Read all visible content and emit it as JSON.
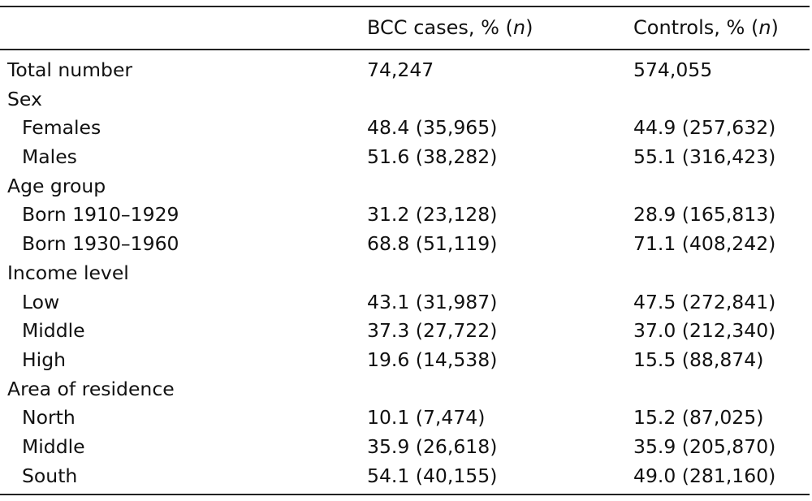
{
  "table": {
    "header": {
      "col1": "",
      "col2_prefix": "BCC cases, % (",
      "col2_n": "n",
      "col2_suffix": ")",
      "col3_prefix": "Controls, % (",
      "col3_n": "n",
      "col3_suffix": ")"
    },
    "rows": [
      {
        "label": "Total number",
        "cases": "74,247",
        "controls": "574,055",
        "indent": false
      },
      {
        "label": "Sex",
        "cases": "",
        "controls": "",
        "indent": false
      },
      {
        "label": "Females",
        "cases": "48.4 (35,965)",
        "controls": "44.9 (257,632)",
        "indent": true
      },
      {
        "label": "Males",
        "cases": "51.6 (38,282)",
        "controls": "55.1 (316,423)",
        "indent": true
      },
      {
        "label": "Age group",
        "cases": "",
        "controls": "",
        "indent": false
      },
      {
        "label": "Born 1910–1929",
        "cases": "31.2 (23,128)",
        "controls": "28.9 (165,813)",
        "indent": true
      },
      {
        "label": "Born 1930–1960",
        "cases": "68.8 (51,119)",
        "controls": "71.1 (408,242)",
        "indent": true
      },
      {
        "label": "Income level",
        "cases": "",
        "controls": "",
        "indent": false
      },
      {
        "label": "Low",
        "cases": "43.1 (31,987)",
        "controls": "47.5 (272,841)",
        "indent": true
      },
      {
        "label": "Middle",
        "cases": "37.3 (27,722)",
        "controls": "37.0 (212,340)",
        "indent": true
      },
      {
        "label": "High",
        "cases": "19.6 (14,538)",
        "controls": "15.5 (88,874)",
        "indent": true
      },
      {
        "label": "Area of residence",
        "cases": "",
        "controls": "",
        "indent": false
      },
      {
        "label": "North",
        "cases": "10.1 (7,474)",
        "controls": "15.2 (87,025)",
        "indent": true
      },
      {
        "label": "Middle",
        "cases": "35.9 (26,618)",
        "controls": "35.9 (205,870)",
        "indent": true
      },
      {
        "label": "South",
        "cases": "54.1 (40,155)",
        "controls": "49.0 (281,160)",
        "indent": true
      }
    ]
  }
}
